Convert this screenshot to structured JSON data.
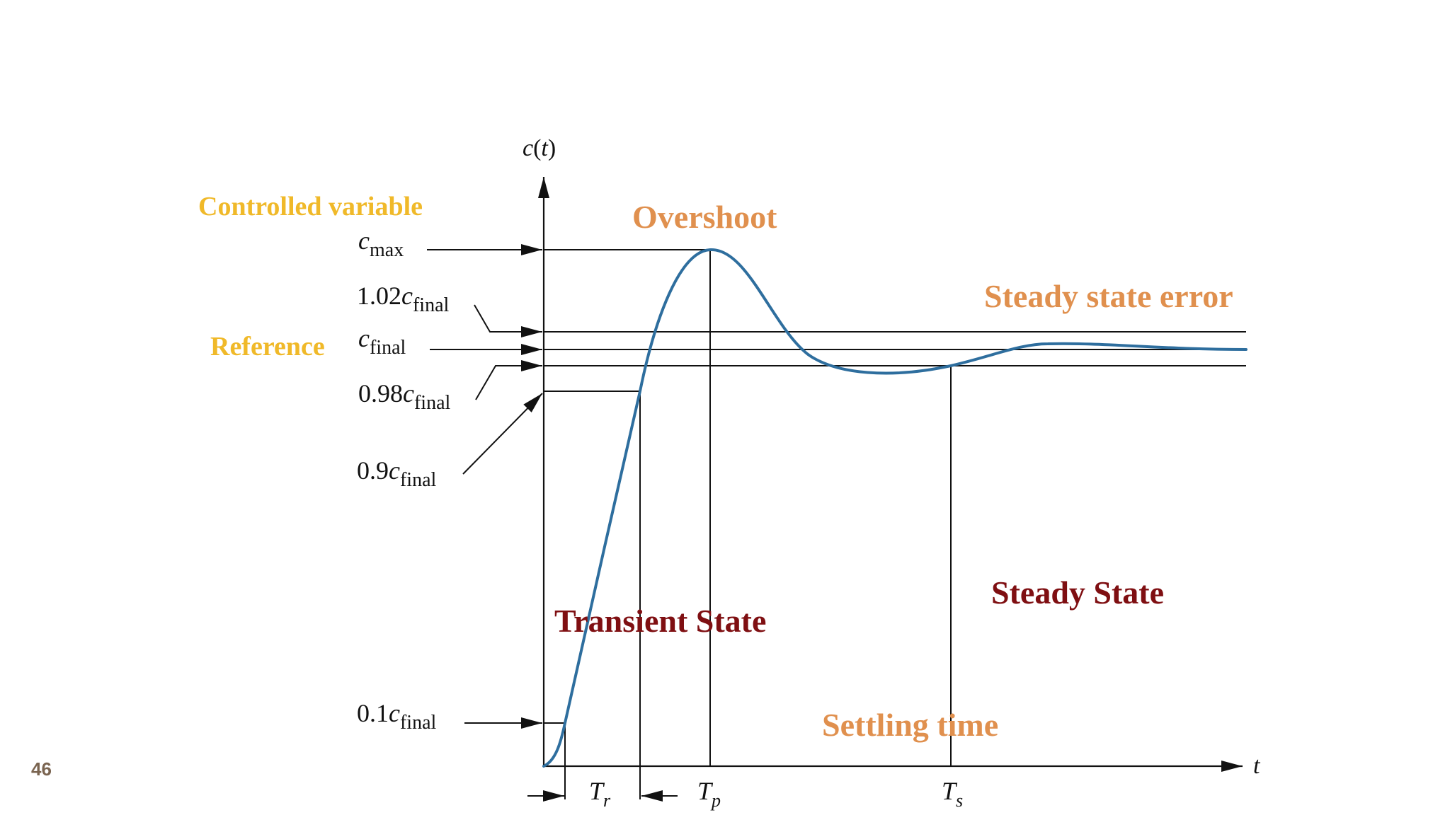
{
  "page_number": "46",
  "colors": {
    "curve": "#2E6E9E",
    "annotation_yellow": "#F0B929",
    "annotation_orange": "#E0904E",
    "annotation_darkred": "#7F0F12",
    "ink": "#111111"
  },
  "axes": {
    "y_symbol": "c",
    "y_arg": "t",
    "x_symbol": "t"
  },
  "levels": {
    "cmax": {
      "base": "c",
      "sub": "max"
    },
    "c102": {
      "prefix": "1.02",
      "base": "c",
      "sub": "final"
    },
    "cfinal": {
      "base": "c",
      "sub": "final"
    },
    "c098": {
      "prefix": "0.98",
      "base": "c",
      "sub": "final"
    },
    "c09": {
      "prefix": "0.9",
      "base": "c",
      "sub": "final"
    },
    "c01": {
      "prefix": "0.1",
      "base": "c",
      "sub": "final"
    }
  },
  "times": {
    "tr": {
      "base": "T",
      "sub": "r"
    },
    "tp": {
      "base": "T",
      "sub": "p"
    },
    "ts": {
      "base": "T",
      "sub": "s"
    }
  },
  "annotations": {
    "controlled_variable": "Controlled variable",
    "reference": "Reference",
    "overshoot": "Overshoot",
    "steady_state_error": "Steady state error",
    "transient_state": "Transient State",
    "steady_state": "Steady State",
    "settling_time": "Settling time"
  }
}
